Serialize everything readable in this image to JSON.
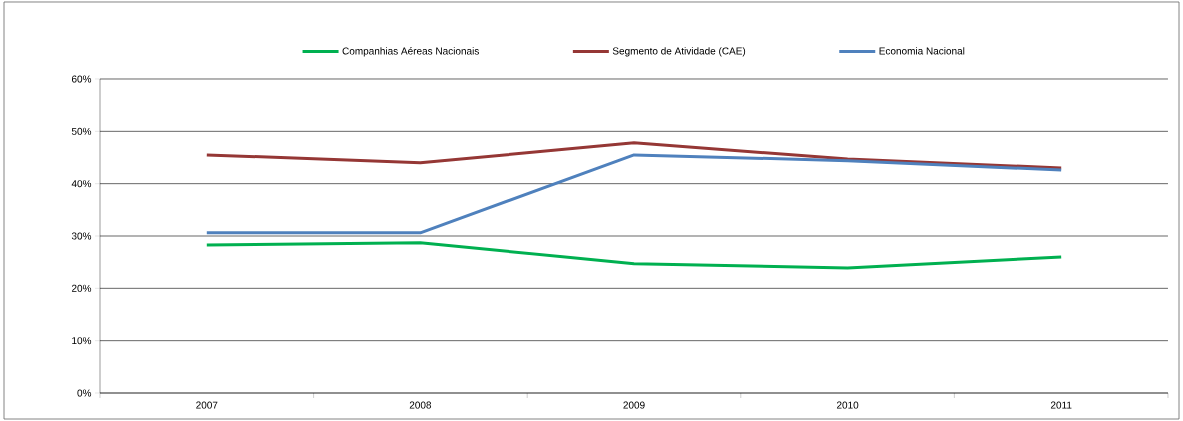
{
  "chart_data": {
    "type": "line",
    "categories": [
      "2007",
      "2008",
      "2009",
      "2010",
      "2011"
    ],
    "series": [
      {
        "name": "Companhias Aéreas Nacionais",
        "color": "#00b050",
        "values": [
          28.3,
          28.7,
          24.7,
          23.9,
          26.0
        ]
      },
      {
        "name": "Segmento de Atividade (CAE)",
        "color": "#953735",
        "values": [
          45.5,
          44.0,
          47.8,
          44.7,
          43.0
        ]
      },
      {
        "name": "Economia Nacional",
        "color": "#4f81bd",
        "values": [
          30.6,
          30.6,
          45.5,
          44.4,
          42.6
        ]
      }
    ],
    "ylim": [
      0,
      60
    ],
    "yticks": [
      {
        "value": 0,
        "label": "0%"
      },
      {
        "value": 10,
        "label": "10%"
      },
      {
        "value": 20,
        "label": "20%"
      },
      {
        "value": 30,
        "label": "30%"
      },
      {
        "value": 40,
        "label": "40%"
      },
      {
        "value": 50,
        "label": "50%"
      },
      {
        "value": 60,
        "label": "60%"
      }
    ],
    "grid": "y",
    "legend": "top",
    "marker": "none",
    "line_style": "solid"
  }
}
